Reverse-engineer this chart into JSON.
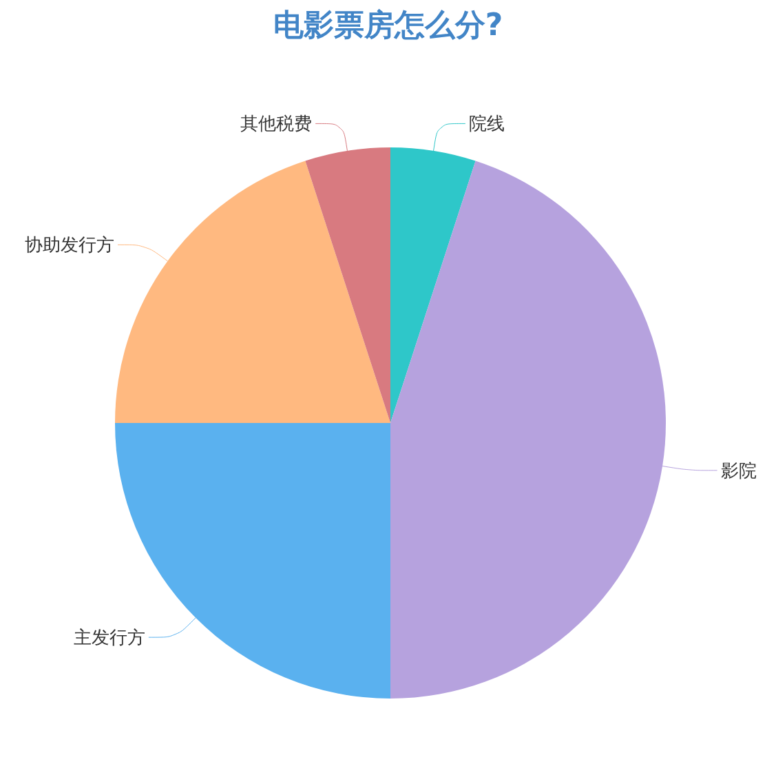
{
  "chart_data": {
    "type": "pie",
    "title": "电影票房怎么分?",
    "categories": [
      "院线",
      "影院",
      "主发行方",
      "协助发行方",
      "其他税费"
    ],
    "values": [
      5,
      45,
      25,
      20,
      5
    ],
    "colors": [
      "#2ec7c9",
      "#b6a2de",
      "#5ab1ef",
      "#ffb980",
      "#d87a80"
    ],
    "legend": false
  }
}
